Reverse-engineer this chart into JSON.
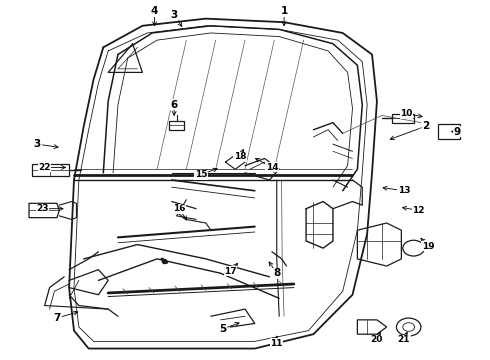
{
  "bg_color": "#ffffff",
  "line_color": "#1a1a1a",
  "label_color": "#000000",
  "fig_width": 4.9,
  "fig_height": 3.6,
  "dpi": 100,
  "label_positions": {
    "1": [
      0.58,
      0.97,
      0.0,
      -0.05
    ],
    "2": [
      0.87,
      0.65,
      -0.08,
      -0.04
    ],
    "3a": [
      0.355,
      0.96,
      0.02,
      -0.04
    ],
    "4": [
      0.315,
      0.97,
      0.0,
      -0.05
    ],
    "3b": [
      0.075,
      0.6,
      0.05,
      -0.01
    ],
    "5": [
      0.455,
      0.085,
      0.04,
      0.02
    ],
    "6": [
      0.355,
      0.71,
      0.0,
      -0.04
    ],
    "7": [
      0.115,
      0.115,
      0.05,
      0.02
    ],
    "8": [
      0.565,
      0.24,
      -0.02,
      0.04
    ],
    "9": [
      0.935,
      0.635,
      -0.02,
      0.0
    ],
    "10": [
      0.83,
      0.685,
      0.04,
      -0.01
    ],
    "11": [
      0.565,
      0.045,
      0.0,
      0.03
    ],
    "12": [
      0.855,
      0.415,
      -0.04,
      0.01
    ],
    "13": [
      0.825,
      0.47,
      -0.05,
      0.01
    ],
    "14": [
      0.555,
      0.535,
      -0.04,
      0.03
    ],
    "15": [
      0.41,
      0.515,
      0.04,
      0.02
    ],
    "16": [
      0.365,
      0.42,
      0.02,
      -0.04
    ],
    "17": [
      0.47,
      0.245,
      0.02,
      0.03
    ],
    "18": [
      0.49,
      0.565,
      0.01,
      0.03
    ],
    "19": [
      0.875,
      0.315,
      -0.02,
      0.03
    ],
    "20": [
      0.77,
      0.055,
      0.01,
      0.03
    ],
    "21": [
      0.825,
      0.055,
      0.01,
      0.03
    ],
    "22": [
      0.09,
      0.535,
      0.05,
      0.0
    ],
    "23": [
      0.085,
      0.42,
      0.05,
      0.0
    ]
  }
}
